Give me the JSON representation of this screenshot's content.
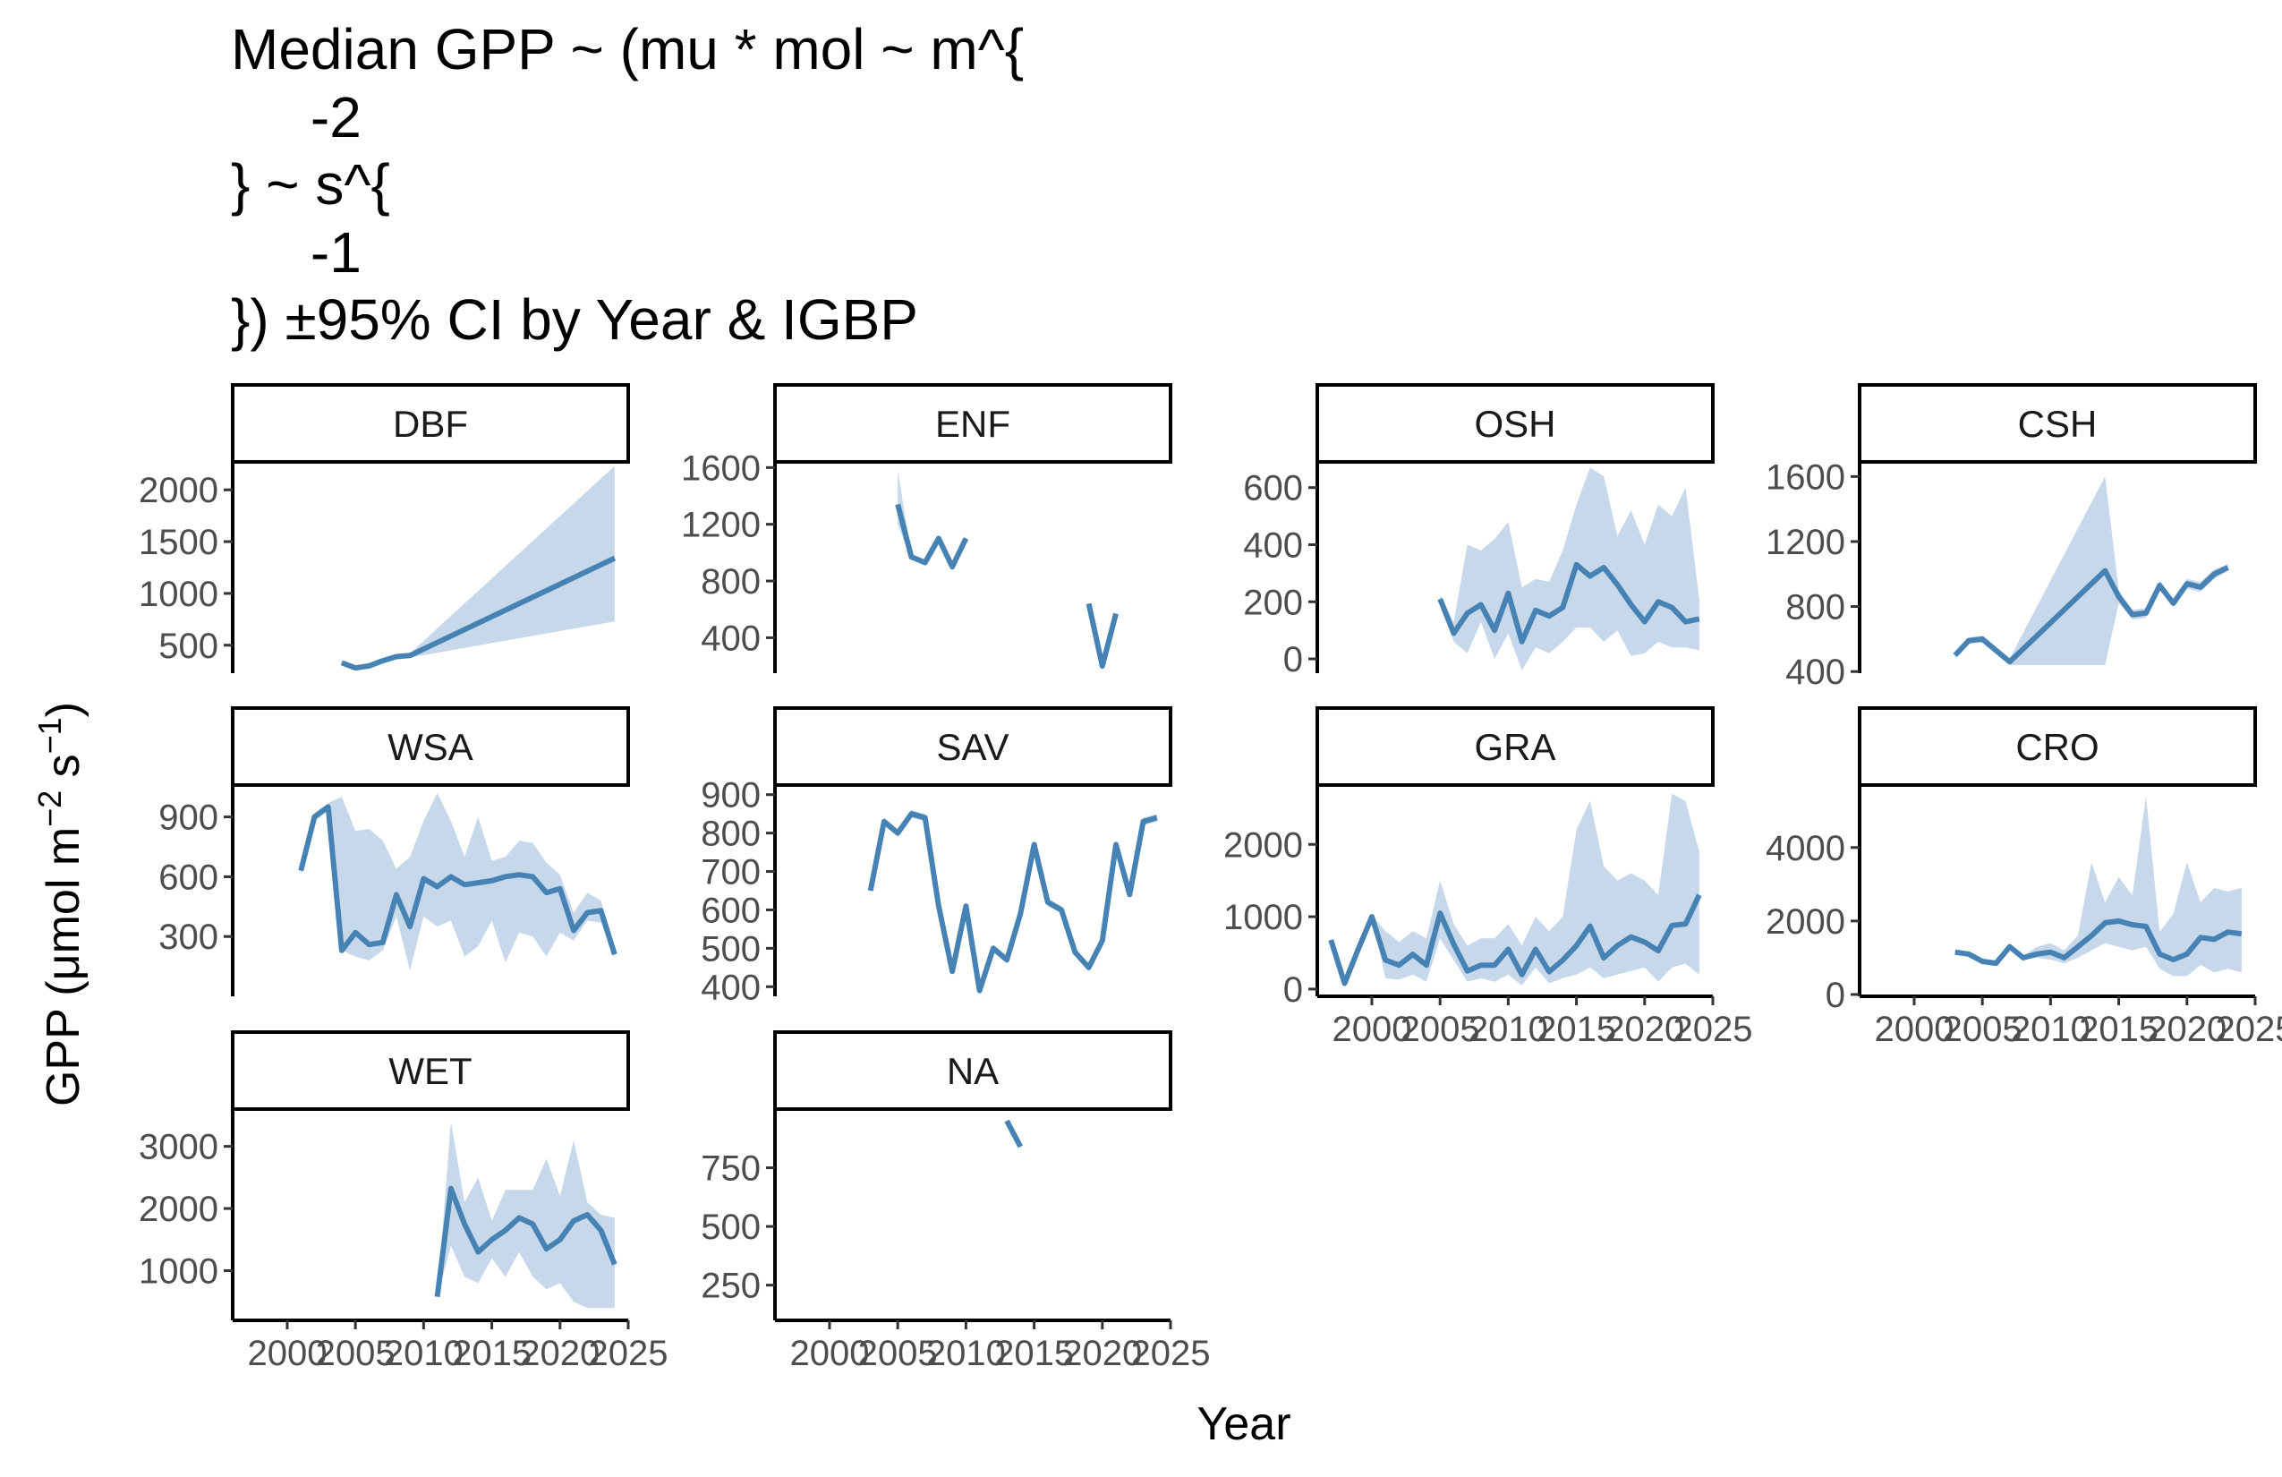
{
  "chart_data": {
    "type": "line",
    "title_lines": [
      "Median GPP ~ (mu * mol ~ m^{",
      "     -2",
      "} ~ s^{",
      "     -1",
      "}) ±95% CI by Year & IGBP"
    ],
    "xlabel": "Year",
    "ylabel": {
      "base": "GPP (μmol m",
      "sup1": "−2",
      "mid": " s",
      "sup2": "−1",
      "end": ")"
    },
    "x_ticks": [
      "2000",
      "2005",
      "2010",
      "2015",
      "2020",
      "2025"
    ],
    "xlim": [
      1996,
      2025
    ],
    "colors": {
      "line": "#4682b4",
      "band": "#c6d8ea",
      "axis": "#000000",
      "tick_label": "#4d4d4d"
    },
    "panels": [
      {
        "name": "DBF",
        "ylim": [
          230,
          2270
        ],
        "y_ticks": [
          "500",
          "1000",
          "1500",
          "2000"
        ],
        "series": [
          {
            "x": [
              2004,
              2005,
              2006,
              2007,
              2008,
              2009,
              2024
            ],
            "y": [
              330,
              280,
              300,
              350,
              390,
              400,
              1340
            ],
            "lo": [
              320,
              270,
              290,
              340,
              380,
              380,
              730
            ],
            "hi": [
              340,
              290,
              310,
              360,
              400,
              420,
              2230
            ]
          }
        ]
      },
      {
        "name": "ENF",
        "ylim": [
          150,
          1640
        ],
        "y_ticks": [
          "400",
          "800",
          "1200",
          "1600"
        ],
        "series": [
          {
            "x": [
              2005,
              2006,
              2007,
              2008,
              2009,
              2010
            ],
            "y": [
              1340,
              970,
              930,
              1100,
              900,
              1100
            ],
            "lo": [
              1200,
              950,
              910,
              1080,
              880,
              1080
            ],
            "hi": [
              1580,
              990,
              950,
              1120,
              920,
              1120
            ]
          },
          {
            "x": [
              2019,
              2020,
              2021
            ],
            "y": [
              640,
              200,
              570
            ],
            "lo": [
              630,
              190,
              560
            ],
            "hi": [
              650,
              210,
              580
            ]
          }
        ]
      },
      {
        "name": "OSH",
        "ylim": [
          -50,
          690
        ],
        "y_ticks": [
          "0",
          "200",
          "400",
          "600"
        ],
        "series": [
          {
            "x": [
              2005,
              2006,
              2007,
              2008,
              2009,
              2010,
              2011,
              2012,
              2013,
              2014,
              2015,
              2016,
              2017,
              2018,
              2019,
              2020,
              2021,
              2022,
              2023,
              2024
            ],
            "y": [
              210,
              90,
              160,
              190,
              100,
              230,
              60,
              170,
              150,
              180,
              330,
              290,
              320,
              260,
              190,
              130,
              200,
              180,
              130,
              140
            ],
            "lo": [
              195,
              60,
              20,
              130,
              0,
              90,
              -40,
              40,
              20,
              60,
              110,
              110,
              60,
              100,
              10,
              20,
              60,
              40,
              40,
              30
            ],
            "hi": [
              225,
              130,
              400,
              380,
              420,
              480,
              250,
              280,
              270,
              380,
              540,
              670,
              640,
              430,
              520,
              400,
              540,
              500,
              600,
              210
            ]
          }
        ]
      },
      {
        "name": "CSH",
        "ylim": [
          390,
          1690
        ],
        "y_ticks": [
          "400",
          "800",
          "1200",
          "1600"
        ],
        "series": [
          {
            "x": [
              2003,
              2004,
              2005,
              2006,
              2007,
              2014,
              2015,
              2016,
              2017,
              2018,
              2019,
              2020,
              2021,
              2022,
              2023
            ],
            "y": [
              500,
              590,
              600,
              530,
              460,
              1020,
              860,
              750,
              760,
              930,
              820,
              940,
              920,
              1000,
              1040
            ],
            "lo": [
              480,
              570,
              580,
              510,
              440,
              440,
              820,
              720,
              730,
              900,
              800,
              910,
              890,
              970,
              1020
            ],
            "hi": [
              520,
              610,
              620,
              550,
              480,
              1600,
              900,
              780,
              790,
              960,
              840,
              970,
              950,
              1030,
              1060
            ]
          }
        ]
      },
      {
        "name": "WSA",
        "ylim": [
          0,
          1060
        ],
        "y_ticks": [
          "300",
          "600",
          "900"
        ],
        "series": [
          {
            "x": [
              2001,
              2002,
              2003,
              2004,
              2005,
              2006,
              2007,
              2008,
              2009,
              2010,
              2011,
              2012,
              2013,
              2014,
              2015,
              2016,
              2017,
              2018,
              2019,
              2020,
              2021,
              2022,
              2023,
              2024
            ],
            "y": [
              630,
              900,
              950,
              230,
              320,
              260,
              270,
              510,
              350,
              590,
              550,
              600,
              560,
              570,
              580,
              600,
              610,
              600,
              520,
              540,
              330,
              420,
              430,
              210
            ],
            "lo": [
              610,
              880,
              930,
              230,
              200,
              180,
              230,
              400,
              130,
              400,
              350,
              380,
              200,
              250,
              380,
              170,
              320,
              300,
              200,
              320,
              280,
              380,
              370,
              200
            ],
            "hi": [
              650,
              920,
              970,
              1000,
              830,
              840,
              780,
              640,
              700,
              880,
              1020,
              880,
              700,
              900,
              680,
              700,
              780,
              770,
              670,
              610,
              420,
              520,
              480,
              220
            ]
          }
        ]
      },
      {
        "name": "SAV",
        "ylim": [
          375,
          925
        ],
        "y_ticks": [
          "400",
          "500",
          "600",
          "700",
          "800",
          "900"
        ],
        "series": [
          {
            "x": [
              2003,
              2004,
              2005,
              2006,
              2007,
              2008,
              2009,
              2010,
              2011,
              2012,
              2013,
              2014,
              2015,
              2016,
              2017,
              2018,
              2019,
              2020,
              2021,
              2022,
              2023,
              2024
            ],
            "y": [
              650,
              830,
              800,
              850,
              840,
              610,
              440,
              610,
              390,
              500,
              470,
              590,
              770,
              620,
              600,
              490,
              450,
              520,
              770,
              640,
              830,
              840
            ],
            "lo": [
              640,
              820,
              790,
              840,
              830,
              600,
              430,
              600,
              380,
              490,
              460,
              580,
              760,
              610,
              590,
              480,
              440,
              510,
              760,
              630,
              820,
              830
            ],
            "hi": [
              660,
              840,
              810,
              860,
              850,
              620,
              450,
              620,
              400,
              510,
              480,
              600,
              780,
              630,
              610,
              500,
              460,
              530,
              780,
              650,
              840,
              850
            ]
          }
        ]
      },
      {
        "name": "GRA",
        "ylim": [
          -100,
          2820
        ],
        "y_ticks": [
          "0",
          "1000",
          "2000"
        ],
        "series": [
          {
            "x": [
              1997,
              1998,
              1999,
              2000,
              2001,
              2002,
              2003,
              2004,
              2005,
              2006,
              2007,
              2008,
              2009,
              2010,
              2011,
              2012,
              2013,
              2014,
              2015,
              2016,
              2017,
              2018,
              2019,
              2020,
              2021,
              2022,
              2023,
              2024
            ],
            "y": [
              680,
              80,
              550,
              1000,
              400,
              330,
              480,
              330,
              1050,
              620,
              250,
              330,
              330,
              550,
              200,
              550,
              240,
              400,
              600,
              870,
              430,
              600,
              720,
              650,
              530,
              880,
              900,
              1300
            ],
            "lo": [
              660,
              60,
              530,
              980,
              150,
              130,
              200,
              100,
              700,
              400,
              100,
              150,
              100,
              200,
              50,
              300,
              80,
              150,
              200,
              300,
              150,
              200,
              250,
              300,
              100,
              300,
              350,
              200
            ],
            "hi": [
              700,
              100,
              570,
              1020,
              800,
              650,
              800,
              700,
              1500,
              900,
              600,
              700,
              700,
              900,
              600,
              1000,
              800,
              1000,
              2200,
              2600,
              1700,
              1500,
              1600,
              1500,
              1300,
              2700,
              2600,
              1900
            ]
          }
        ]
      },
      {
        "name": "CRO",
        "ylim": [
          -50,
          5700
        ],
        "y_ticks": [
          "0",
          "2000",
          "4000"
        ],
        "series": [
          {
            "x": [
              2003,
              2004,
              2005,
              2006,
              2007,
              2008,
              2009,
              2010,
              2011,
              2012,
              2013,
              2014,
              2015,
              2016,
              2017,
              2018,
              2019,
              2020,
              2021,
              2022,
              2023,
              2024
            ],
            "y": [
              1150,
              1100,
              900,
              850,
              1300,
              1000,
              1100,
              1150,
              1000,
              1300,
              1600,
              1950,
              2000,
              1900,
              1850,
              1100,
              950,
              1100,
              1550,
              1500,
              1700,
              1650
            ],
            "lo": [
              1130,
              1080,
              880,
              830,
              1280,
              950,
              1000,
              950,
              850,
              1000,
              1200,
              1400,
              1300,
              1200,
              1300,
              700,
              500,
              500,
              800,
              600,
              700,
              600
            ],
            "hi": [
              1170,
              1120,
              920,
              870,
              1320,
              1050,
              1300,
              1400,
              1200,
              1600,
              3600,
              2500,
              3200,
              2700,
              5400,
              1700,
              2200,
              3600,
              2500,
              2900,
              2800,
              2900
            ]
          }
        ]
      },
      {
        "name": "WET",
        "ylim": [
          200,
          3600
        ],
        "y_ticks": [
          "1000",
          "2000",
          "3000"
        ],
        "series": [
          {
            "x": [
              2011,
              2012,
              2013,
              2014,
              2015,
              2016,
              2017,
              2018,
              2019,
              2020,
              2021,
              2022,
              2023,
              2024
            ],
            "y": [
              580,
              2320,
              1750,
              1300,
              1500,
              1650,
              1850,
              1750,
              1350,
              1500,
              1800,
              1900,
              1650,
              1100
            ],
            "lo": [
              560,
              1400,
              900,
              800,
              1200,
              900,
              1300,
              900,
              700,
              800,
              500,
              400,
              400,
              400
            ],
            "hi": [
              600,
              3400,
              2100,
              2500,
              1800,
              2300,
              2300,
              2300,
              2800,
              2200,
              3100,
              2100,
              1900,
              1850
            ]
          }
        ]
      },
      {
        "name": "NA",
        "ylim": [
          100,
          1000
        ],
        "y_ticks": [
          "250",
          "500",
          "750"
        ],
        "series": [
          {
            "x": [
              2013,
              2014
            ],
            "y": [
              950,
              840
            ],
            "lo": [
              945,
              835
            ],
            "hi": [
              955,
              845
            ]
          }
        ]
      }
    ]
  }
}
